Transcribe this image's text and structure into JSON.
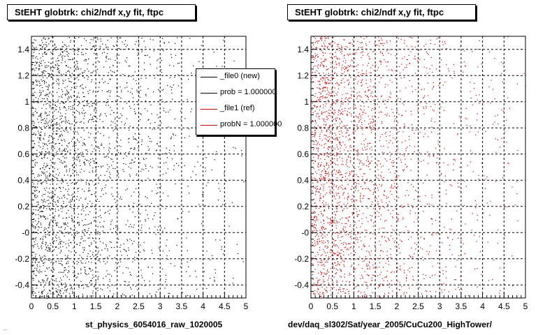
{
  "chart_data": [
    {
      "type": "scatter",
      "title": "StEHT globtrk: chi2/ndf x,y fit, ftpc",
      "xlabel": "st_physics_6054016_raw_1020005",
      "ylabel": "",
      "xlim": [
        0,
        5
      ],
      "ylim": [
        -0.5,
        1.5
      ],
      "x_ticks": [
        0,
        0.5,
        1,
        1.5,
        2,
        2.5,
        3,
        3.5,
        4,
        4.5,
        5
      ],
      "x_tick_labels": [
        "0",
        "0.5",
        "1",
        "1.5",
        "2",
        "2.5",
        "3",
        "3.5",
        "4",
        "4.5",
        "5"
      ],
      "y_ticks": [
        -0.4,
        -0.2,
        0,
        0.2,
        0.4,
        0.6,
        0.8,
        1,
        1.2,
        1.4
      ],
      "y_tick_labels": [
        "-0.4",
        "-0.2",
        "-0",
        "0.2",
        "0.4",
        "0.6",
        "0.8",
        "1",
        "1.2",
        "1.4"
      ],
      "grid": true,
      "series": [
        {
          "name": "_file0 (new)",
          "color": "#000000",
          "density_peak_x": 0.3,
          "density_falloff_x": 3.0
        }
      ],
      "legend": {
        "placement": "top-right",
        "entries": [
          {
            "label": "_file0 (new)",
            "color": "#000000"
          },
          {
            "label": "prob = 1.000000",
            "color": "#000000"
          },
          {
            "label": "_file1 (ref)",
            "color": "#cc0000"
          },
          {
            "label": "probN = 1.000000",
            "color": "#cc0000"
          }
        ]
      }
    },
    {
      "type": "scatter",
      "title": "StEHT globtrk: chi2/ndf x,y fit, ftpc",
      "xlabel": "dev/daq_sl302/Sat/year_2005/CuCu200_HighTower/",
      "ylabel": "",
      "xlim": [
        0,
        5
      ],
      "ylim": [
        -0.5,
        1.5
      ],
      "x_ticks": [
        0,
        0.5,
        1,
        1.5,
        2,
        2.5,
        3,
        3.5,
        4,
        4.5,
        5
      ],
      "x_tick_labels": [
        "0",
        "0.5",
        "1",
        "1.5",
        "2",
        "2.5",
        "3",
        "3.5",
        "4",
        "4.5",
        "5"
      ],
      "y_ticks": [
        -0.4,
        -0.2,
        0,
        0.2,
        0.4,
        0.6,
        0.8,
        1,
        1.2,
        1.4
      ],
      "y_tick_labels": [
        "-0.4",
        "-0.2",
        "-0",
        "0.2",
        "0.4",
        "0.6",
        "0.8",
        "1",
        "1.2",
        "1.4"
      ],
      "grid": true,
      "series": [
        {
          "name": "_file1 (ref)",
          "color": "#cc0000",
          "density_peak_x": 0.3,
          "density_falloff_x": 3.0
        }
      ]
    }
  ],
  "footnote": "..."
}
